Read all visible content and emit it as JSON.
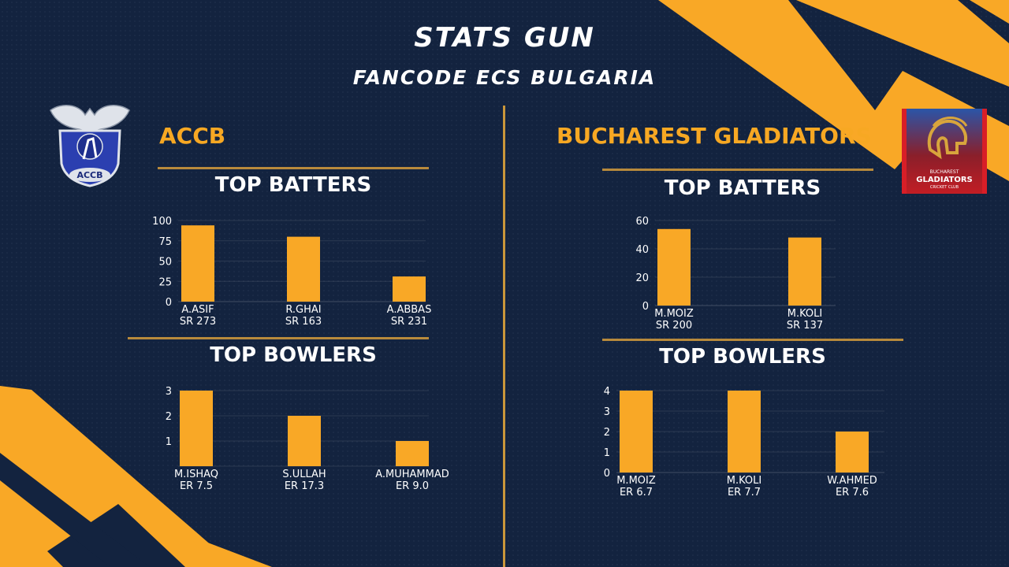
{
  "header": {
    "title": "STATS GUN",
    "subtitle": "FANCODE ECS BULGARIA"
  },
  "colors": {
    "accent": "#f9a826",
    "background": "#13233f",
    "rule": "#b88a3c"
  },
  "logos": {
    "left": {
      "icon": "accb-eagle-crest-icon",
      "text": "ACCB"
    },
    "right": {
      "icon": "gladiator-helmet-icon",
      "line1": "BUCHAREST",
      "line2": "GLADIATORS",
      "line3": "CRICKET CLUB"
    }
  },
  "teams": [
    {
      "name": "ACCB",
      "batters_title": "TOP BATTERS",
      "bowlers_title": "TOP BOWLERS",
      "batters_chart": {
        "type": "bar",
        "categories": [
          [
            "A.ASIF",
            "SR 273"
          ],
          [
            "R.GHAI",
            "SR 163"
          ],
          [
            "A.ABBAS",
            "SR 231"
          ]
        ],
        "values": [
          94,
          80,
          31
        ],
        "ylim": [
          0,
          100
        ],
        "yticks": [
          0,
          25,
          50,
          75,
          100
        ]
      },
      "bowlers_chart": {
        "type": "bar",
        "categories": [
          [
            "M.ISHAQ",
            "ER 7.5"
          ],
          [
            "S.ULLAH",
            "ER 17.3"
          ],
          [
            "A.MUHAMMAD",
            "ER 9.0"
          ]
        ],
        "values": [
          3,
          2,
          1
        ],
        "ylim": [
          0,
          3
        ],
        "yticks": [
          1,
          2,
          3
        ]
      }
    },
    {
      "name": "BUCHAREST GLADIATORS",
      "batters_title": "TOP BATTERS",
      "bowlers_title": "TOP BOWLERS",
      "batters_chart": {
        "type": "bar",
        "categories": [
          [
            "M.MOIZ",
            "SR 200"
          ],
          [
            "M.KOLI",
            "SR 137"
          ]
        ],
        "values": [
          54,
          48
        ],
        "ylim": [
          0,
          60
        ],
        "yticks": [
          0,
          20,
          40,
          60
        ]
      },
      "bowlers_chart": {
        "type": "bar",
        "categories": [
          [
            "M.MOIZ",
            "ER 6.7"
          ],
          [
            "M.KOLI",
            "ER 7.7"
          ],
          [
            "W.AHMED",
            "ER 7.6"
          ]
        ],
        "values": [
          4,
          4,
          2
        ],
        "ylim": [
          0,
          4
        ],
        "yticks": [
          0,
          1,
          2,
          3,
          4
        ]
      }
    }
  ],
  "chart_data": [
    {
      "type": "bar",
      "title": "TOP BATTERS",
      "categories": [
        "A.ASIF SR 273",
        "R.GHAI SR 163",
        "A.ABBAS SR 231"
      ],
      "values": [
        94,
        80,
        31
      ],
      "ylim": [
        0,
        100
      ]
    },
    {
      "type": "bar",
      "title": "TOP BOWLERS",
      "categories": [
        "M.ISHAQ ER 7.5",
        "S.ULLAH ER 17.3",
        "A.MUHAMMAD ER 9.0"
      ],
      "values": [
        3,
        2,
        1
      ],
      "ylim": [
        0,
        3
      ]
    },
    {
      "type": "bar",
      "title": "TOP BATTERS",
      "categories": [
        "M.MOIZ SR 200",
        "M.KOLI SR 137"
      ],
      "values": [
        54,
        48
      ],
      "ylim": [
        0,
        60
      ]
    },
    {
      "type": "bar",
      "title": "TOP BOWLERS",
      "categories": [
        "M.MOIZ ER 6.7",
        "M.KOLI ER 7.7",
        "W.AHMED ER 7.6"
      ],
      "values": [
        4,
        4,
        2
      ],
      "ylim": [
        0,
        4
      ]
    }
  ]
}
